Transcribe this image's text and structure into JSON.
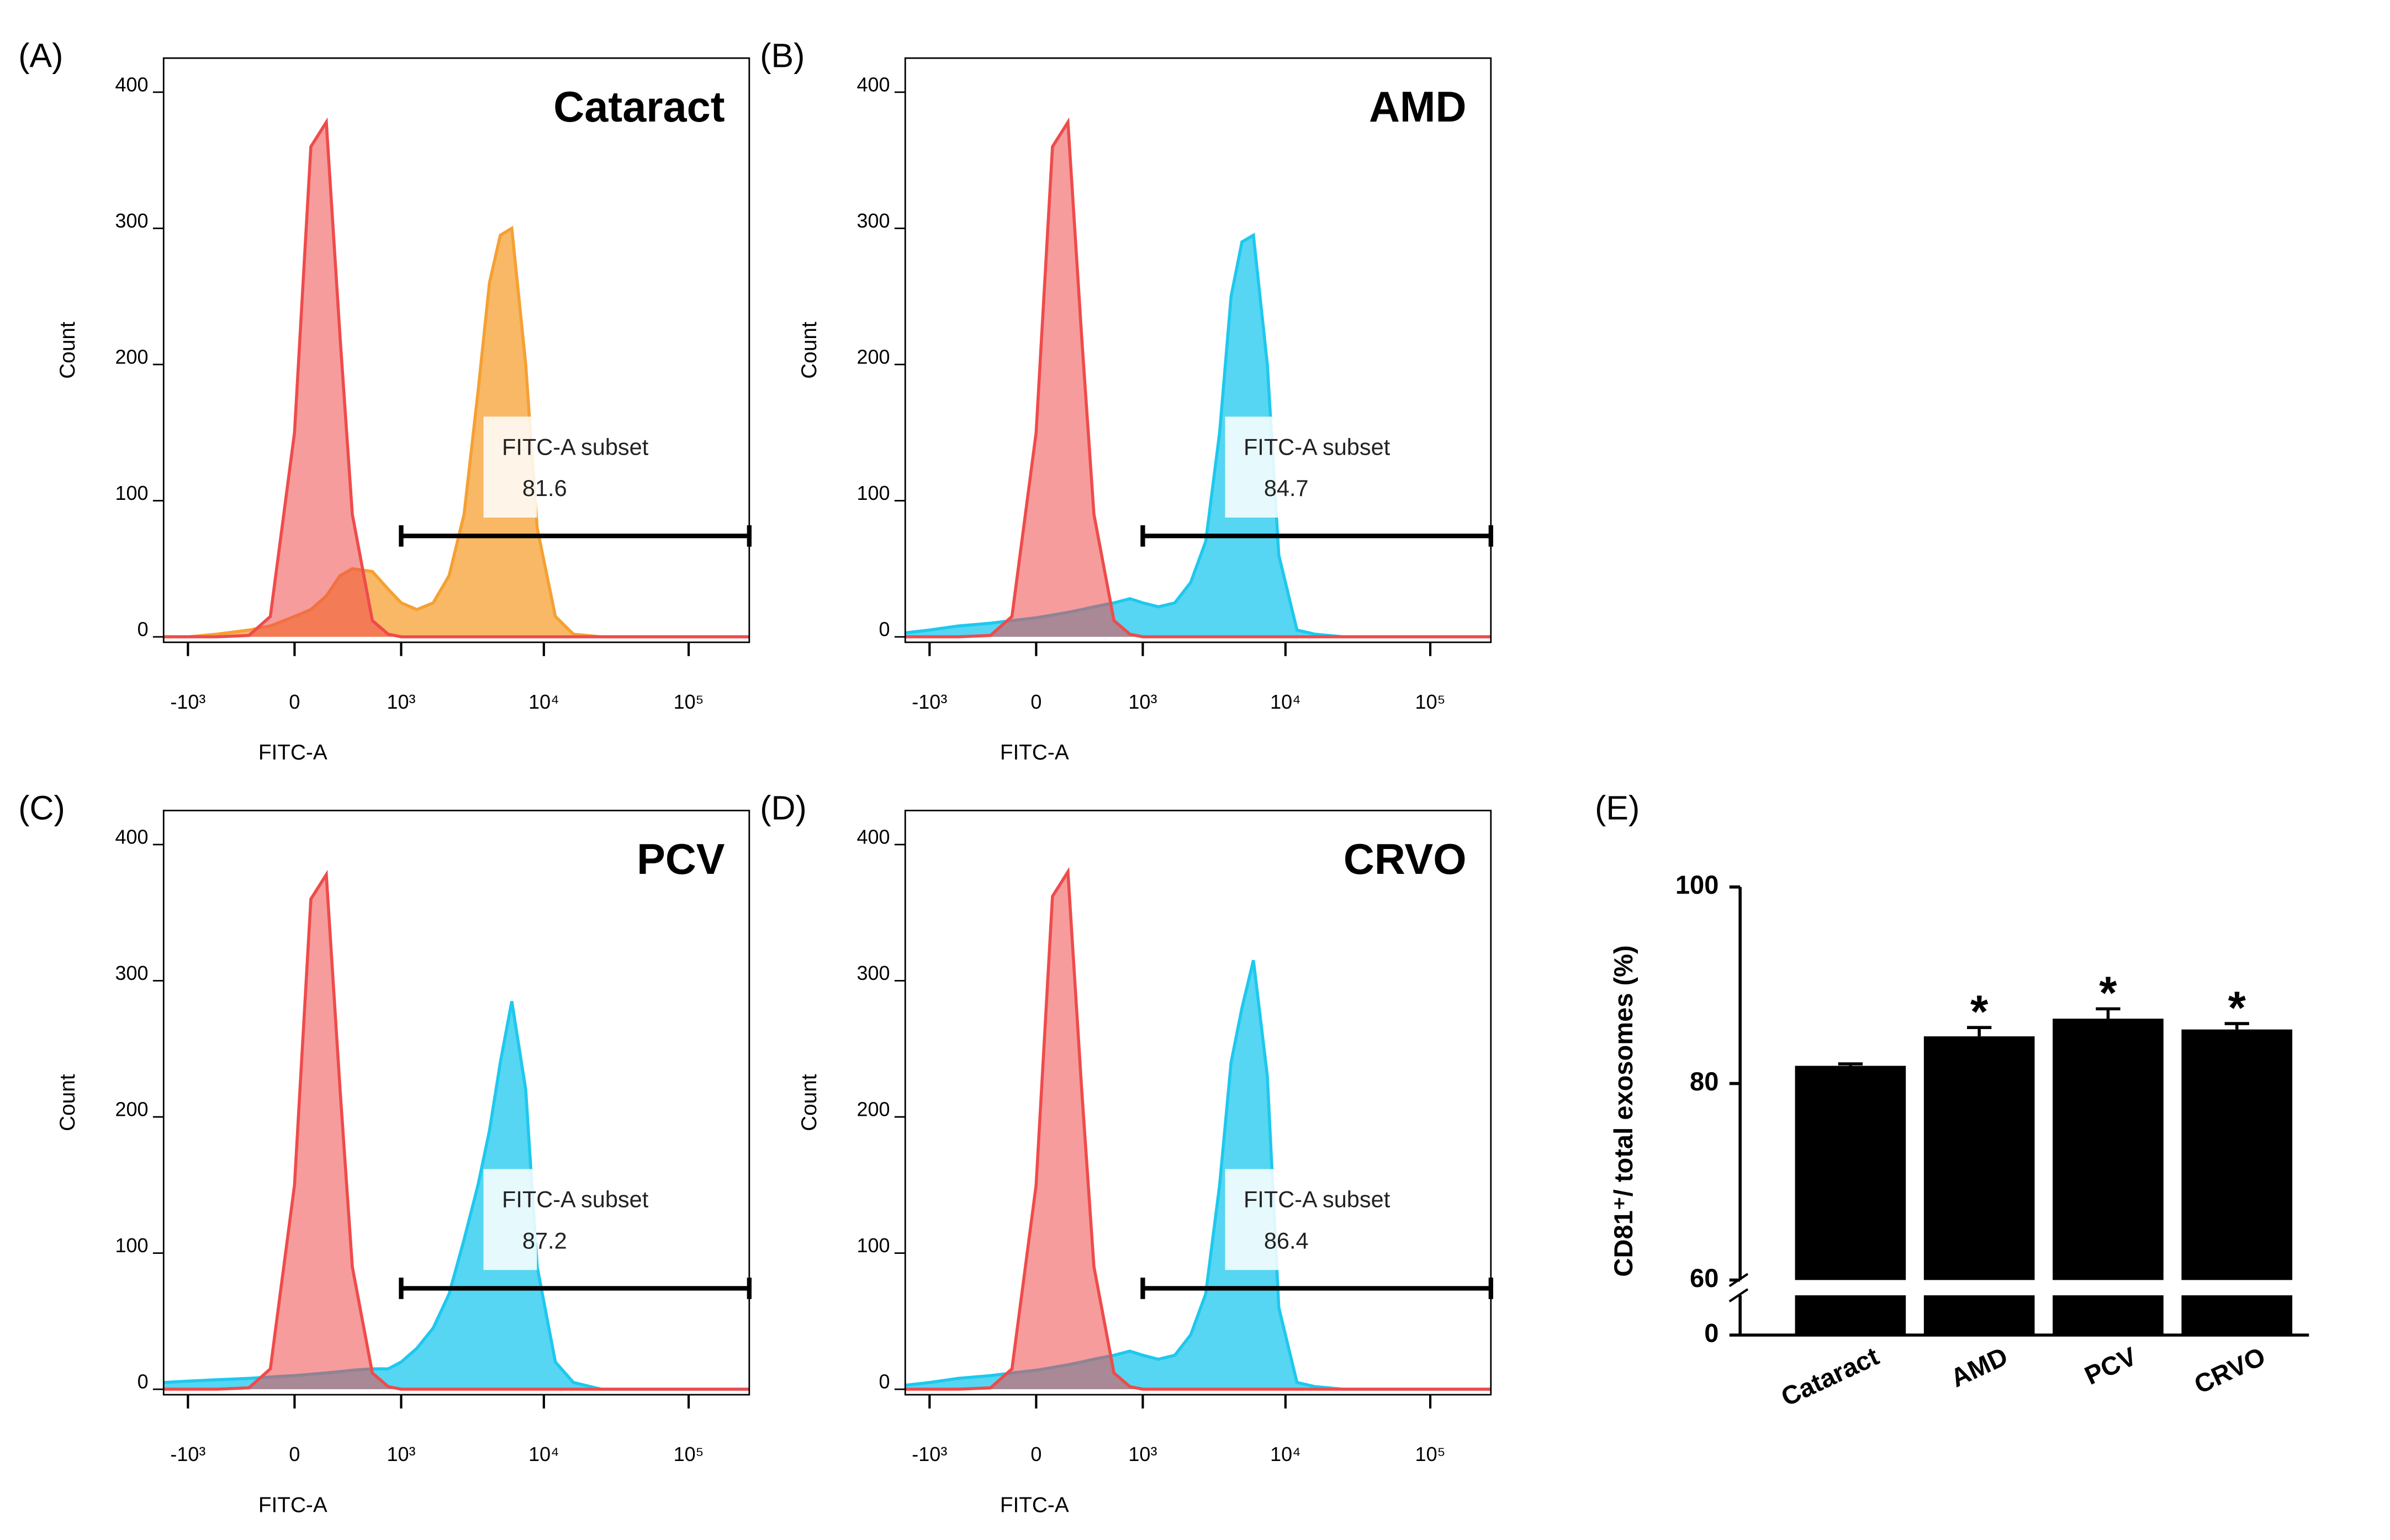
{
  "chart_data": [
    {
      "type": "area",
      "label": "(A)",
      "title": "Cataract",
      "xlabel": "FITC-A",
      "ylabel": "Count",
      "xscale": "biexponential",
      "x": [
        -1500,
        -1000,
        -600,
        -300,
        -150,
        0,
        100,
        200,
        300,
        400,
        600,
        800,
        1000,
        1300,
        1700,
        2200,
        2800,
        3500,
        4200,
        5000,
        6000,
        7500,
        9000,
        12000,
        16000,
        25000,
        50000,
        262144
      ],
      "series": [
        {
          "color": "#f5a033",
          "values": [
            0,
            0,
            2,
            5,
            8,
            15,
            20,
            30,
            45,
            50,
            48,
            35,
            25,
            20,
            25,
            45,
            90,
            180,
            260,
            295,
            300,
            200,
            80,
            15,
            2,
            0,
            0,
            0
          ]
        },
        {
          "color": "#ef4b4b",
          "values": [
            0,
            0,
            0,
            1,
            15,
            150,
            360,
            378,
            220,
            90,
            12,
            2,
            0,
            0,
            0,
            0,
            0,
            0,
            0,
            0,
            0,
            0,
            0,
            0,
            0,
            0,
            0,
            0
          ]
        }
      ],
      "gate": {
        "range": [
          1000,
          262144
        ],
        "label": "FITC-A subset",
        "value": 81.6
      },
      "xlim": [
        -1500,
        262144
      ],
      "ylim": [
        -4,
        425
      ],
      "yticks": [
        0,
        100,
        200,
        300,
        400
      ],
      "xticks": [
        {
          "value": -1000,
          "label": "-10³"
        },
        0,
        {
          "value": 1000,
          "label": "10³"
        },
        {
          "value": 10000,
          "label": "10⁴"
        },
        {
          "value": 100000,
          "label": "10⁵"
        }
      ]
    },
    {
      "type": "area",
      "label": "(B)",
      "title": "AMD",
      "xlabel": "FITC-A",
      "ylabel": "Count",
      "xscale": "biexponential",
      "x": [
        -1500,
        -1000,
        -600,
        -300,
        -150,
        0,
        100,
        200,
        300,
        400,
        600,
        800,
        1000,
        1300,
        1700,
        2200,
        2800,
        3500,
        4200,
        5000,
        6000,
        7500,
        9000,
        12000,
        16000,
        25000,
        50000,
        262144
      ],
      "series": [
        {
          "color": "#1ec8ee",
          "values": [
            3,
            5,
            8,
            10,
            12,
            14,
            16,
            18,
            20,
            22,
            25,
            28,
            25,
            22,
            25,
            40,
            70,
            150,
            250,
            290,
            295,
            200,
            60,
            5,
            2,
            0,
            0,
            0
          ]
        },
        {
          "color": "#ef4b4b",
          "values": [
            0,
            0,
            0,
            1,
            15,
            150,
            360,
            378,
            220,
            90,
            12,
            2,
            0,
            0,
            0,
            0,
            0,
            0,
            0,
            0,
            0,
            0,
            0,
            0,
            0,
            0,
            0,
            0
          ]
        }
      ],
      "gate": {
        "range": [
          1000,
          262144
        ],
        "label": "FITC-A subset",
        "value": 84.7
      },
      "xlim": [
        -1500,
        262144
      ],
      "ylim": [
        -4,
        425
      ],
      "yticks": [
        0,
        100,
        200,
        300,
        400
      ],
      "xticks": [
        {
          "value": -1000,
          "label": "-10³"
        },
        0,
        {
          "value": 1000,
          "label": "10³"
        },
        {
          "value": 10000,
          "label": "10⁴"
        },
        {
          "value": 100000,
          "label": "10⁵"
        }
      ]
    },
    {
      "type": "area",
      "label": "(C)",
      "title": "PCV",
      "xlabel": "FITC-A",
      "ylabel": "Count",
      "xscale": "biexponential",
      "x": [
        -1500,
        -1000,
        -600,
        -300,
        -150,
        0,
        100,
        200,
        300,
        400,
        600,
        800,
        1000,
        1300,
        1700,
        2200,
        2800,
        3500,
        4200,
        5000,
        6000,
        7500,
        9000,
        12000,
        16000,
        25000,
        50000,
        262144
      ],
      "series": [
        {
          "color": "#1ec8ee",
          "values": [
            5,
            6,
            7,
            8,
            9,
            10,
            11,
            12,
            13,
            14,
            15,
            15,
            20,
            30,
            45,
            70,
            110,
            150,
            190,
            240,
            285,
            220,
            90,
            20,
            5,
            0,
            0,
            0
          ]
        },
        {
          "color": "#ef4b4b",
          "values": [
            0,
            0,
            0,
            1,
            15,
            150,
            360,
            378,
            220,
            90,
            12,
            2,
            0,
            0,
            0,
            0,
            0,
            0,
            0,
            0,
            0,
            0,
            0,
            0,
            0,
            0,
            0,
            0
          ]
        }
      ],
      "gate": {
        "range": [
          1000,
          262144
        ],
        "label": "FITC-A subset",
        "value": 87.2
      },
      "xlim": [
        -1500,
        262144
      ],
      "ylim": [
        -4,
        425
      ],
      "yticks": [
        0,
        100,
        200,
        300,
        400
      ],
      "xticks": [
        {
          "value": -1000,
          "label": "-10³"
        },
        0,
        {
          "value": 1000,
          "label": "10³"
        },
        {
          "value": 10000,
          "label": "10⁴"
        },
        {
          "value": 100000,
          "label": "10⁵"
        }
      ]
    },
    {
      "type": "area",
      "label": "(D)",
      "title": "CRVO",
      "xlabel": "FITC-A",
      "ylabel": "Count",
      "xscale": "biexponential",
      "x": [
        -1500,
        -1000,
        -600,
        -300,
        -150,
        0,
        100,
        200,
        300,
        400,
        600,
        800,
        1000,
        1300,
        1700,
        2200,
        2800,
        3500,
        4200,
        5000,
        6000,
        7500,
        9000,
        12000,
        16000,
        25000,
        50000,
        262144
      ],
      "series": [
        {
          "color": "#1ec8ee",
          "values": [
            3,
            5,
            8,
            10,
            12,
            14,
            16,
            18,
            20,
            22,
            25,
            28,
            25,
            22,
            25,
            40,
            70,
            150,
            240,
            280,
            315,
            230,
            60,
            5,
            2,
            0,
            0,
            0
          ]
        },
        {
          "color": "#ef4b4b",
          "values": [
            0,
            0,
            0,
            1,
            15,
            150,
            362,
            380,
            220,
            90,
            12,
            2,
            0,
            0,
            0,
            0,
            0,
            0,
            0,
            0,
            0,
            0,
            0,
            0,
            0,
            0,
            0,
            0
          ]
        }
      ],
      "gate": {
        "range": [
          1000,
          262144
        ],
        "label": "FITC-A subset",
        "value": 86.4
      },
      "xlim": [
        -1500,
        262144
      ],
      "ylim": [
        -4,
        425
      ],
      "yticks": [
        0,
        100,
        200,
        300,
        400
      ],
      "xticks": [
        {
          "value": -1000,
          "label": "-10³"
        },
        0,
        {
          "value": 1000,
          "label": "10³"
        },
        {
          "value": 10000,
          "label": "10⁴"
        },
        {
          "value": 100000,
          "label": "10⁵"
        }
      ]
    },
    {
      "type": "bar",
      "label": "(E)",
      "ylabel": "CD81⁺/ total exosomes (%)",
      "categories": [
        "Cataract",
        "AMD",
        "PCV",
        "CRVO"
      ],
      "values": [
        81.8,
        84.8,
        86.6,
        85.5
      ],
      "errors": [
        0.2,
        0.9,
        1.0,
        0.6
      ],
      "significance": [
        null,
        "*",
        "*",
        "*"
      ],
      "color": "#000000",
      "ylim": [
        0,
        100
      ],
      "yticks": [
        0,
        60,
        80,
        100
      ],
      "ybreak": [
        4,
        60
      ]
    }
  ]
}
